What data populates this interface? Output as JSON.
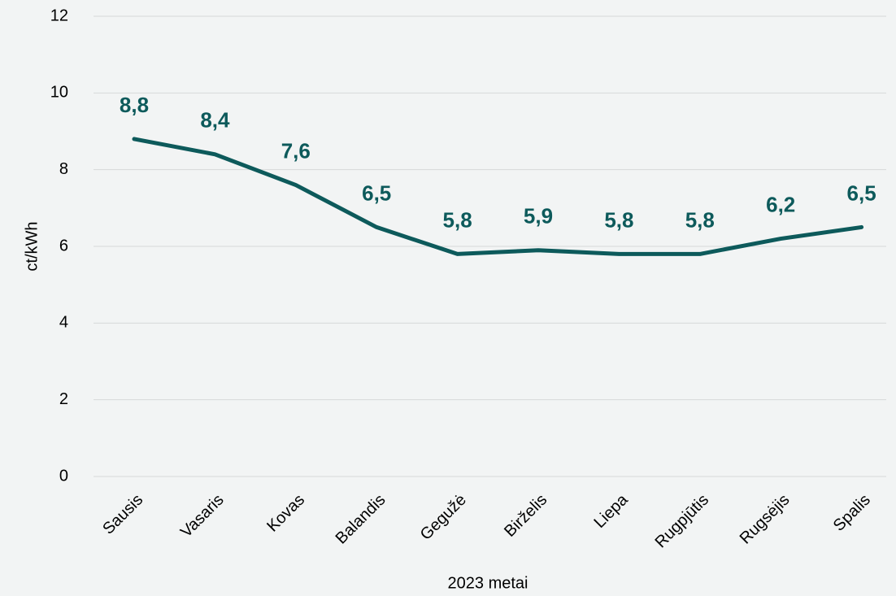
{
  "chart_data": {
    "type": "line",
    "categories": [
      "Sausis",
      "Vasaris",
      "Kovas",
      "Balandis",
      "Gegužė",
      "Birželis",
      "Liepa",
      "Rugpjūtis",
      "Rugsėjis",
      "Spalis"
    ],
    "values": [
      8.8,
      8.4,
      7.6,
      6.5,
      5.8,
      5.9,
      5.8,
      5.8,
      6.2,
      6.5
    ],
    "value_labels": [
      "8,8",
      "8,4",
      "7,6",
      "6,5",
      "5,8",
      "5,9",
      "5,8",
      "5,8",
      "6,2",
      "6,5"
    ],
    "color": "#0d5a5b",
    "ylim": [
      0,
      12
    ],
    "yticks": [
      0,
      2,
      4,
      6,
      8,
      10,
      12
    ],
    "grid": true,
    "y_label": "ct/kWh",
    "x_label": "2023 metai"
  }
}
